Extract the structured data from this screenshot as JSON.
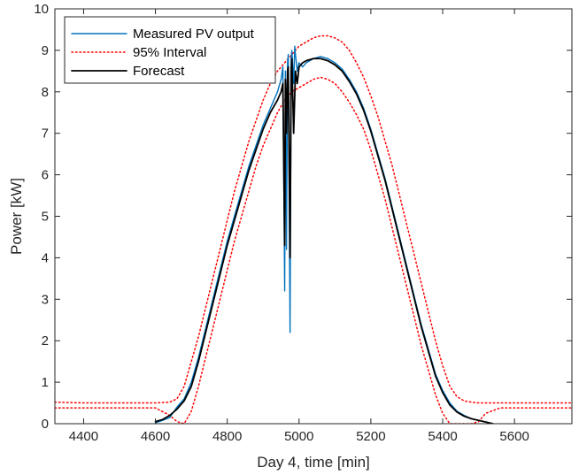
{
  "chart_data": {
    "type": "line",
    "xlabel": "Day 4, time [min]",
    "ylabel": "Power [kW]",
    "xlim": [
      4320,
      5760
    ],
    "ylim": [
      0,
      10
    ],
    "xticks": [
      4400,
      4600,
      4800,
      5000,
      5200,
      5400,
      5600
    ],
    "yticks": [
      0,
      1,
      2,
      3,
      4,
      5,
      6,
      7,
      8,
      9,
      10
    ],
    "grid": false,
    "legend_position": "top-left",
    "colors": {
      "measured": "#0072BD",
      "interval": "#FF0000",
      "forecast": "#000000",
      "axes": "#262626"
    },
    "series": [
      {
        "name": "Measured PV output",
        "style": "solid",
        "x": [
          4600,
          4620,
          4640,
          4660,
          4680,
          4700,
          4720,
          4740,
          4760,
          4780,
          4800,
          4820,
          4840,
          4860,
          4880,
          4900,
          4920,
          4940,
          4950,
          4955,
          4960,
          4962,
          4965,
          4968,
          4970,
          4975,
          4978,
          4980,
          4985,
          4988,
          4990,
          4995,
          5000,
          5010,
          5020,
          5040,
          5060,
          5080,
          5100,
          5120,
          5140,
          5160,
          5180,
          5200,
          5220,
          5240,
          5260,
          5280,
          5300,
          5320,
          5340,
          5360,
          5380,
          5400,
          5420,
          5440,
          5460,
          5480,
          5500,
          5520,
          5540
        ],
        "y": [
          0.02,
          0.08,
          0.15,
          0.4,
          0.6,
          1.0,
          1.6,
          2.3,
          3.0,
          3.7,
          4.4,
          5.0,
          5.6,
          6.2,
          6.7,
          7.2,
          7.6,
          8.0,
          8.3,
          8.6,
          3.2,
          8.5,
          4.2,
          8.7,
          8.9,
          2.2,
          8.8,
          9.0,
          8.2,
          9.1,
          8.9,
          8.5,
          8.7,
          8.6,
          8.7,
          8.8,
          8.85,
          8.8,
          8.7,
          8.55,
          8.3,
          8.0,
          7.6,
          7.1,
          6.5,
          5.9,
          5.2,
          4.5,
          3.8,
          3.1,
          2.4,
          1.8,
          1.2,
          0.8,
          0.5,
          0.3,
          0.2,
          0.12,
          0.08,
          0.04,
          0.0
        ]
      },
      {
        "name": "95% Interval",
        "style": "dotted",
        "x": [
          4320,
          4400,
          4500,
          4600,
          4640,
          4660,
          4680,
          4700,
          4720,
          4740,
          4760,
          4780,
          4800,
          4820,
          4840,
          4860,
          4880,
          4900,
          4920,
          4940,
          4960,
          4980,
          5000,
          5020,
          5040,
          5060,
          5080,
          5100,
          5120,
          5140,
          5160,
          5180,
          5200,
          5220,
          5240,
          5260,
          5280,
          5300,
          5320,
          5340,
          5360,
          5380,
          5400,
          5420,
          5440,
          5460,
          5480,
          5500,
          5520,
          5560,
          5600,
          5700,
          5760
        ],
        "y": [
          0.52,
          0.5,
          0.5,
          0.5,
          0.52,
          0.6,
          0.9,
          1.5,
          2.1,
          2.8,
          3.5,
          4.2,
          4.9,
          5.6,
          6.2,
          6.8,
          7.3,
          7.8,
          8.2,
          8.5,
          8.7,
          8.9,
          9.1,
          9.2,
          9.3,
          9.35,
          9.35,
          9.3,
          9.2,
          9.0,
          8.7,
          8.35,
          7.9,
          7.4,
          6.8,
          6.2,
          5.5,
          4.8,
          4.1,
          3.4,
          2.7,
          2.0,
          1.4,
          0.9,
          0.65,
          0.55,
          0.52,
          0.5,
          0.5,
          0.5,
          0.5,
          0.5,
          0.5
        ]
      },
      {
        "name": "95% Interval lower bound",
        "style": "dotted",
        "x": [
          4320,
          4400,
          4500,
          4600,
          4640,
          4660,
          4680,
          4700,
          4720,
          4740,
          4760,
          4780,
          4800,
          4820,
          4840,
          4860,
          4880,
          4900,
          4920,
          4940,
          4960,
          4980,
          5000,
          5020,
          5040,
          5060,
          5080,
          5100,
          5120,
          5140,
          5160,
          5180,
          5200,
          5220,
          5240,
          5260,
          5280,
          5300,
          5320,
          5340,
          5360,
          5380,
          5400,
          5420,
          5440,
          5460,
          5480,
          5500,
          5520,
          5560,
          5600,
          5700,
          5760
        ],
        "y": [
          0.38,
          0.38,
          0.38,
          0.38,
          0.2,
          0.05,
          0.0,
          0.3,
          0.9,
          1.6,
          2.3,
          3.0,
          3.7,
          4.4,
          5.0,
          5.6,
          6.2,
          6.7,
          7.1,
          7.5,
          7.8,
          8.0,
          8.1,
          8.2,
          8.3,
          8.35,
          8.3,
          8.2,
          8.0,
          7.75,
          7.45,
          7.1,
          6.6,
          6.0,
          5.4,
          4.7,
          4.0,
          3.3,
          2.6,
          1.9,
          1.3,
          0.7,
          0.25,
          0.0,
          0.0,
          0.0,
          0.0,
          0.05,
          0.25,
          0.38,
          0.38,
          0.38,
          0.38
        ]
      },
      {
        "name": "Forecast",
        "style": "solid",
        "x": [
          4600,
          4620,
          4640,
          4660,
          4680,
          4700,
          4720,
          4740,
          4760,
          4780,
          4800,
          4820,
          4840,
          4860,
          4880,
          4900,
          4920,
          4940,
          4950,
          4955,
          4960,
          4962,
          4965,
          4968,
          4970,
          4975,
          4978,
          4980,
          4985,
          4990,
          4995,
          5000,
          5010,
          5020,
          5040,
          5060,
          5080,
          5100,
          5120,
          5140,
          5160,
          5180,
          5200,
          5220,
          5240,
          5260,
          5280,
          5300,
          5320,
          5340,
          5360,
          5380,
          5400,
          5420,
          5440,
          5460,
          5480,
          5500,
          5520,
          5540
        ],
        "y": [
          0.05,
          0.1,
          0.2,
          0.35,
          0.55,
          0.9,
          1.5,
          2.2,
          2.9,
          3.6,
          4.3,
          4.9,
          5.5,
          6.1,
          6.6,
          7.1,
          7.5,
          7.8,
          8.0,
          8.2,
          4.3,
          8.3,
          7.0,
          8.5,
          8.6,
          4.0,
          8.5,
          8.8,
          7.0,
          8.5,
          8.2,
          8.6,
          8.7,
          8.75,
          8.8,
          8.8,
          8.75,
          8.65,
          8.5,
          8.25,
          7.95,
          7.55,
          7.05,
          6.45,
          5.85,
          5.15,
          4.45,
          3.75,
          3.05,
          2.35,
          1.75,
          1.15,
          0.75,
          0.45,
          0.28,
          0.18,
          0.12,
          0.08,
          0.04,
          0.0
        ]
      }
    ],
    "legend": [
      {
        "label": "Measured PV output",
        "series": 0
      },
      {
        "label": "95% Interval",
        "series": 1
      },
      {
        "label": "Forecast",
        "series": 3
      }
    ]
  }
}
